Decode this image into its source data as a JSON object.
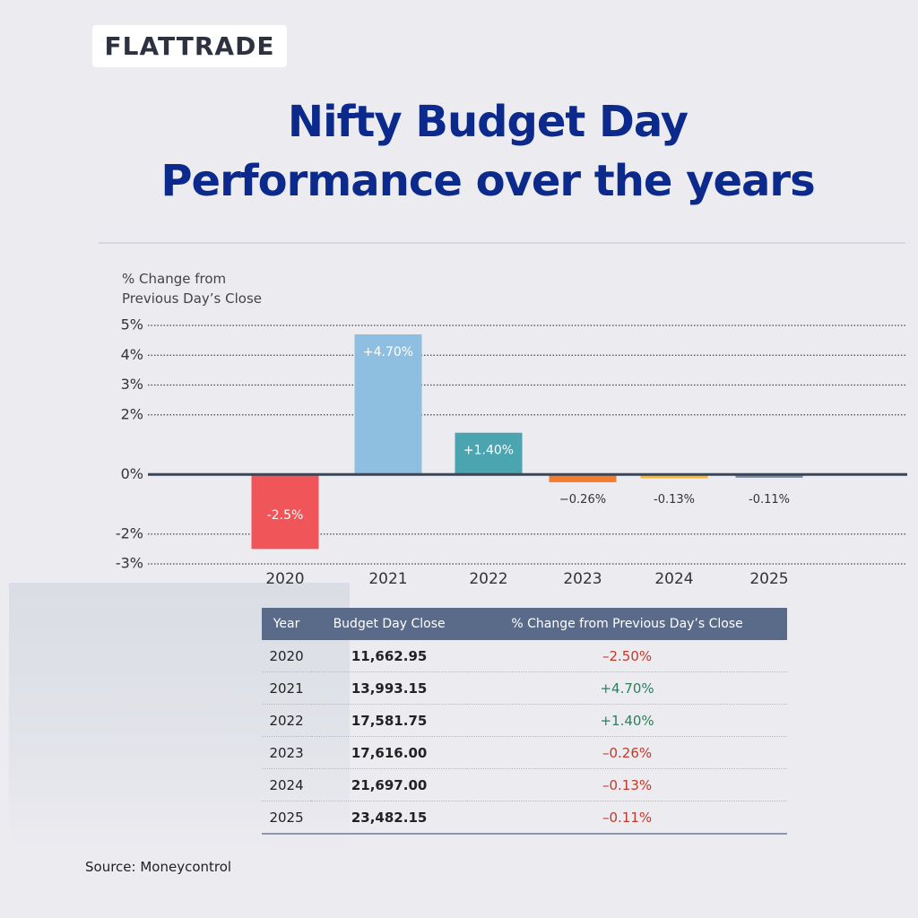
{
  "logo": "FLATTRADE",
  "title_lines": [
    "Nifty Budget Day",
    "Performance over the years"
  ],
  "chart_data": {
    "type": "bar",
    "ylabel": "% Change from Previous Day’s Close",
    "categories": [
      "2020",
      "2021",
      "2022",
      "2023",
      "2024",
      "2025"
    ],
    "values": [
      -2.5,
      4.7,
      1.4,
      -0.26,
      -0.13,
      -0.11
    ],
    "value_labels": [
      "-2.5%",
      "+4.70%",
      "+1.40%",
      "−0.26%",
      "-0.13%",
      "-0.11%"
    ],
    "colors": [
      "#f0555a",
      "#8fbfe0",
      "#4aa5b0",
      "#f47c30",
      "#f8b930",
      "#7a8aa0"
    ],
    "ylim": [
      -3,
      5
    ],
    "yticks": [
      {
        "value": 5,
        "label": "5%"
      },
      {
        "value": 4,
        "label": "4%"
      },
      {
        "value": 3,
        "label": "3%"
      },
      {
        "value": 2,
        "label": "2%"
      },
      {
        "value": 0,
        "label": "0%"
      },
      {
        "value": -2,
        "label": "-2%"
      },
      {
        "value": -3,
        "label": "-3%"
      }
    ],
    "grid": true
  },
  "table": {
    "header": [
      "Year",
      "Budget Day Close",
      "% Change from Previous Day’s Close"
    ],
    "rows": [
      [
        "2020",
        "11,662.95",
        "–2.50%"
      ],
      [
        "2021",
        "13,993.15",
        "+4.70%"
      ],
      [
        "2022",
        "17,581.75",
        "+1.40%"
      ],
      [
        "2023",
        "17,616.00",
        "–0.26%"
      ],
      [
        "2024",
        "21,697.00",
        "–0.13%"
      ],
      [
        "2025",
        "23,482.15",
        "–0.11%"
      ]
    ]
  },
  "source": "Source: Moneycontrol"
}
